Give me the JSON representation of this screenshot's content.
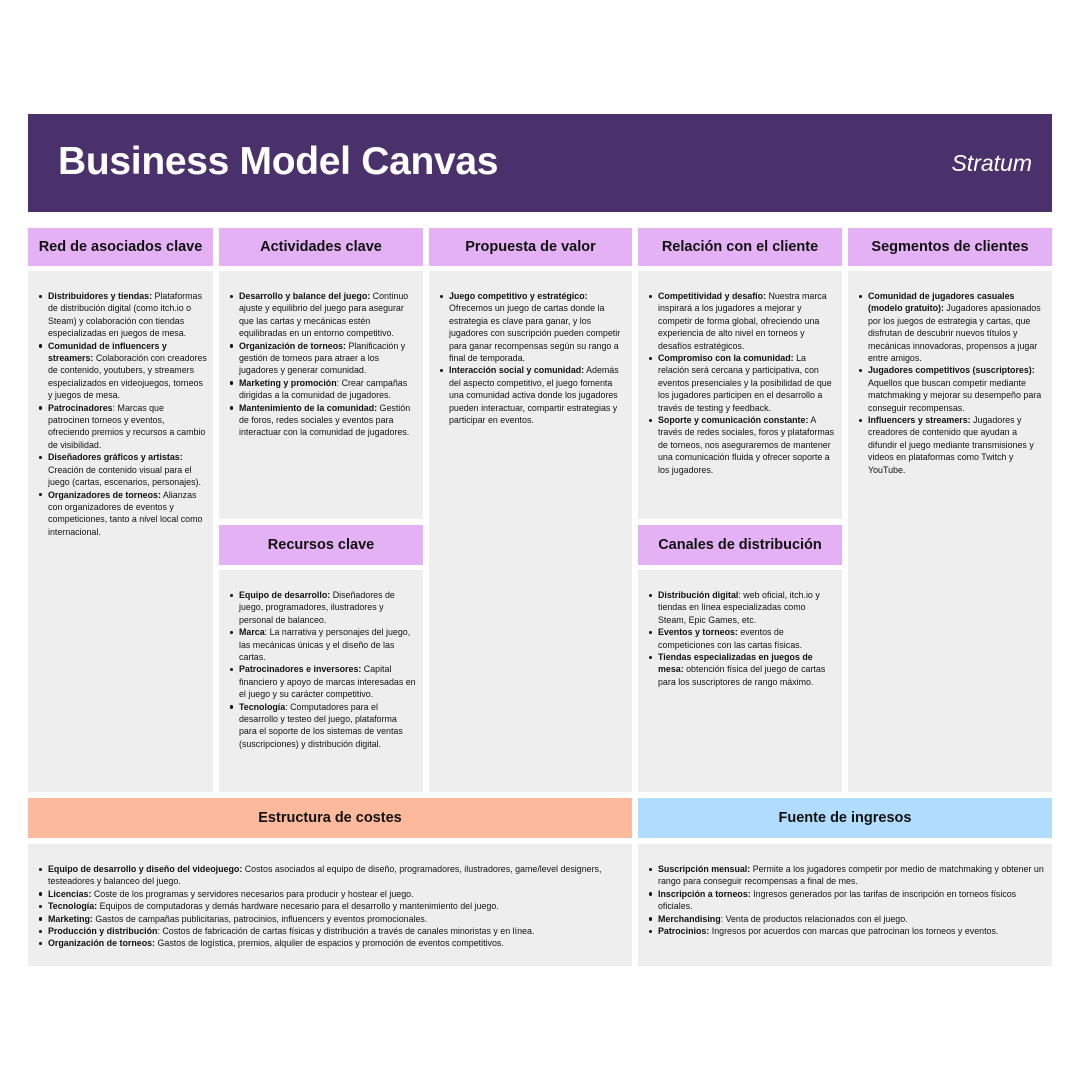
{
  "header": {
    "title": "Business Model Canvas",
    "brand": "Stratum"
  },
  "key_partners": {
    "title": "Red de asociados clave",
    "items": [
      {
        "label": "Distribuidores y tiendas:",
        "text": " Plataformas de distribución digital (como itch.io o Steam) y colaboración con tiendas especializadas en juegos de mesa."
      },
      {
        "label": "Comunidad de influencers y streamers:",
        "text": " Colaboración con creadores de contenido, youtubers, y streamers especializados en videojuegos, torneos y juegos de mesa."
      },
      {
        "label": "Patrocinadores",
        "text": ": Marcas que patrocinen torneos y eventos, ofreciendo premios y recursos a cambio de visibilidad."
      },
      {
        "label": "Diseñadores gráficos y artistas:",
        "text": " Creación de contenido visual para el juego (cartas, escenarios, personajes)."
      },
      {
        "label": "Organizadores de torneos:",
        "text": " Alianzas con organizadores de eventos y competiciones, tanto a nivel local como internacional."
      }
    ]
  },
  "key_activities": {
    "title": "Actividades clave",
    "items": [
      {
        "label": "Desarrollo y balance del juego:",
        "text": " Continuo ajuste y equilibrio del juego para asegurar que las cartas y mecánicas estén equilibradas en un entorno competitivo."
      },
      {
        "label": "Organización de torneos:",
        "text": " Planificación y gestión de torneos para atraer a los jugadores y generar comunidad."
      },
      {
        "label": "Marketing y promoción",
        "text": ": Crear campañas dirigidas a la comunidad de jugadores."
      },
      {
        "label": "Mantenimiento de la comunidad:",
        "text": " Gestión de foros, redes sociales y eventos para interactuar con la comunidad de jugadores."
      }
    ]
  },
  "value_proposition": {
    "title": "Propuesta de valor",
    "items": [
      {
        "label": "Juego competitivo y estratégico:",
        "text": " Ofrecemos un juego de cartas donde la estrategia es clave para ganar, y los jugadores con suscripción pueden competir para ganar recompensas según su rango a final de temporada."
      },
      {
        "label": "Interacción social y comunidad:",
        "text": " Además del aspecto competitivo, el juego fomenta una comunidad activa donde los jugadores pueden interactuar, compartir estrategias y participar en eventos."
      }
    ]
  },
  "customer_relationships": {
    "title": "Relación con el cliente",
    "items": [
      {
        "label": "Competitividad y desafío:",
        "text": " Nuestra marca inspirará a los jugadores a mejorar y competir de forma global, ofreciendo una experiencia de alto nivel en torneos y desafíos estratégicos."
      },
      {
        "label": "Compromiso con la comunidad:",
        "text": " La relación será cercana y participativa, con eventos presenciales y la posibilidad de que los jugadores participen en el desarrollo a través de testing y feedback."
      },
      {
        "label": "Soporte y comunicación constante:",
        "text": " A través de redes sociales, foros y plataformas de torneos, nos aseguraremos de mantener una comunicación fluida y ofrecer soporte a los jugadores."
      }
    ]
  },
  "customer_segments": {
    "title": "Segmentos de clientes",
    "items": [
      {
        "label": "Comunidad de jugadores casuales (modelo gratuito):",
        "text": " Jugadores apasionados por los juegos de estrategia y cartas, que disfrutan de descubrir nuevos títulos y mecánicas innovadoras, propensos a jugar entre amigos."
      },
      {
        "label": "Jugadores competitivos (suscriptores):",
        "text": " Aquellos que buscan competir mediante matchmaking y mejorar su desempeño para conseguir recompensas."
      },
      {
        "label": "Influencers y streamers:",
        "text": " Jugadores y creadores de contenido que ayudan a difundir el juego mediante transmisiones y videos en plataformas como Twitch y YouTube."
      }
    ]
  },
  "key_resources": {
    "title": "Recursos clave",
    "items": [
      {
        "label": "Equipo de desarrollo:",
        "text": " Diseñadores de juego, programadores, ilustradores y personal de balanceo."
      },
      {
        "label": "Marca",
        "text": ": La narrativa y personajes del juego, las mecánicas únicas y el diseño de las cartas."
      },
      {
        "label": "Patrocinadores e inversores:",
        "text": " Capital financiero y apoyo de marcas interesadas en el juego y su carácter competitivo."
      },
      {
        "label": "Tecnología",
        "text": ": Computadores para el desarrollo y testeo del juego, plataforma para el soporte de los sistemas de ventas (suscripciones) y distribución digital."
      }
    ]
  },
  "channels": {
    "title": "Canales de distribución",
    "items": [
      {
        "label": "Distribución digital",
        "text": ":  web oficial, itch.io y tiendas en línea especializadas como Steam, Epic Games, etc."
      },
      {
        "label": "Eventos y torneos:",
        "text": " eventos de competiciones con las cartas físicas."
      },
      {
        "label": "Tiendas especializadas en juegos de mesa:",
        "text": " obtención física del juego de cartas para los suscriptores de rango máximo."
      }
    ]
  },
  "cost_structure": {
    "title": "Estructura de costes",
    "items": [
      {
        "label": "Equipo de desarrollo y diseño del videojuego:",
        "text": " Costos asociados al equipo de diseño, programadores, ilustradores, game/level designers, testeadores y balanceo del juego."
      },
      {
        "label": "Licencias:",
        "text": " Coste de los programas y servidores necesarios para producir y hostear el juego."
      },
      {
        "label": "Tecnología:",
        "text": " Equipos de computadoras y demás hardware necesario para el desarrollo y mantenimiento del juego."
      },
      {
        "label": "Marketing:",
        "text": " Gastos de campañas publicitarias, patrocinios, influencers y eventos promocionales."
      },
      {
        "label": "Producción y distribución",
        "text": ": Costos de fabricación de cartas físicas y distribución a través de canales minoristas y en línea."
      },
      {
        "label": "Organización de torneos:",
        "text": " Gastos de logística, premios, alquiler de espacios y promoción de eventos competitivos."
      }
    ]
  },
  "revenue_streams": {
    "title": "Fuente de ingresos",
    "items": [
      {
        "label": "Suscripción mensual:",
        "text": " Permite a los jugadores competir por medio de matchmaking y obtener un rango para conseguir recompensas a final de mes."
      },
      {
        "label": "Inscripción a torneos:",
        "text": " Ingresos generados por las tarifas de inscripción en torneos físicos oficiales."
      },
      {
        "label": "Merchandising",
        "text": ": Venta de productos relacionados con el juego."
      },
      {
        "label": "Patrocinios:",
        "text": " Ingresos por acuerdos con marcas que patrocinan los torneos y eventos."
      }
    ]
  }
}
